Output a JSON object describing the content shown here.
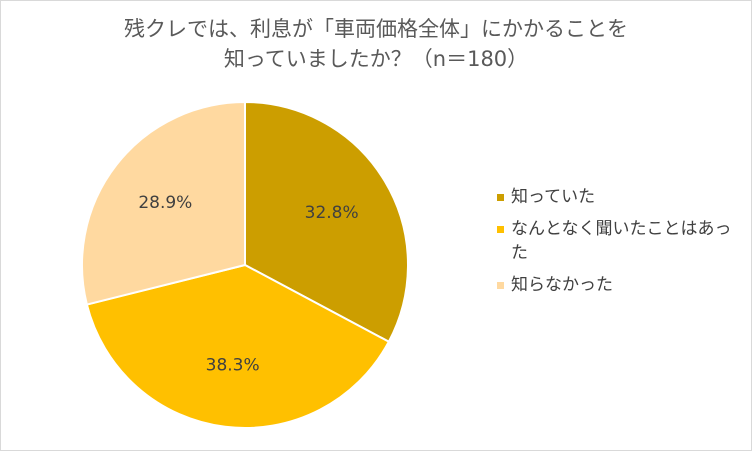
{
  "chart_data": {
    "type": "pie",
    "title_lines": [
      "残クレでは、利息が「車両価格全体」にかかることを",
      "知っていましたか？（n＝180）"
    ],
    "categories": [
      "知っていた",
      "なんとなく聞いたことはあった",
      "知らなかった"
    ],
    "values": [
      32.8,
      38.3,
      28.9
    ],
    "labels": [
      "32.8%",
      "38.3%",
      "28.9%"
    ],
    "colors": [
      "#CC9E00",
      "#FFC000",
      "#FFD9A0"
    ],
    "legend_position": "right",
    "start_angle": "12 o'clock, clockwise"
  }
}
